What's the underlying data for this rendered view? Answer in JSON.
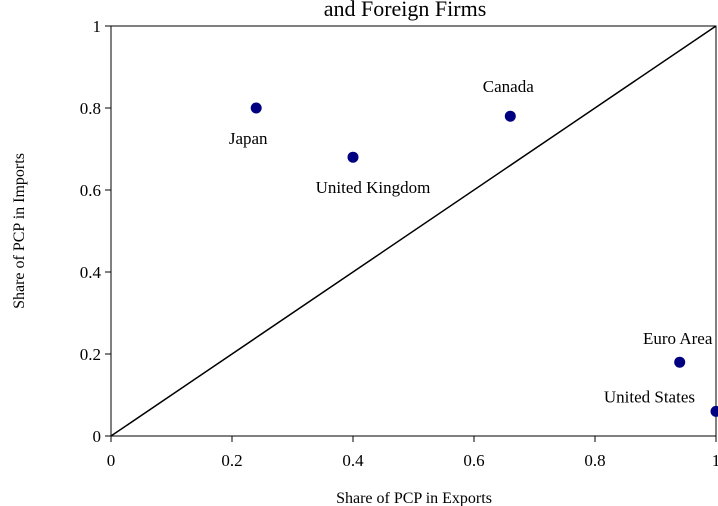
{
  "chart_data": {
    "type": "scatter",
    "title": "and Foreign Firms",
    "xlabel": "Share of PCP in Exports",
    "ylabel": "Share of PCP in Imports",
    "xlim": [
      0,
      1
    ],
    "ylim": [
      0,
      1
    ],
    "x_ticks": [
      "0",
      "0.2",
      "0.4",
      "0.6",
      "0.8",
      "1"
    ],
    "y_ticks": [
      "0",
      "0.2",
      "0.4",
      "0.6",
      "0.8",
      "1"
    ],
    "grid": false,
    "reference_line": "45-degree diagonal from (0,0) to (1,1)",
    "marker_color": "#000080",
    "points": [
      {
        "label": "Japan",
        "x": 0.24,
        "y": 0.8
      },
      {
        "label": "United Kingdom",
        "x": 0.4,
        "y": 0.68
      },
      {
        "label": "Canada",
        "x": 0.66,
        "y": 0.78
      },
      {
        "label": "Euro Area",
        "x": 0.94,
        "y": 0.18
      },
      {
        "label": "United States",
        "x": 1.0,
        "y": 0.06
      }
    ]
  }
}
